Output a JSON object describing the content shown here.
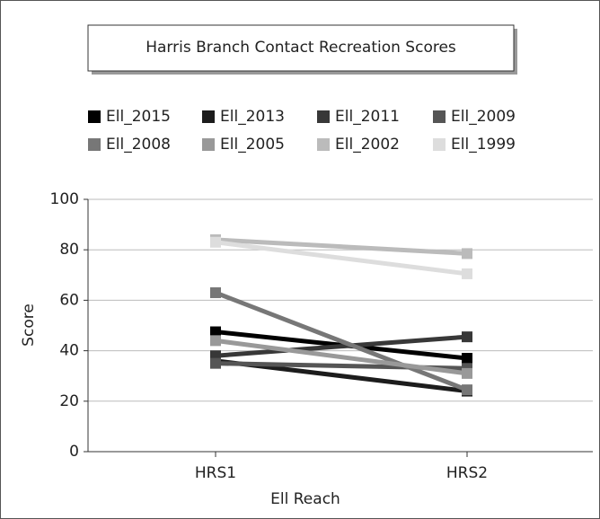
{
  "chart_data": {
    "type": "line",
    "title": "Harris Branch Contact Recreation Scores",
    "x_label": "Ell Reach",
    "y_label": "Score",
    "categories": [
      "HRS1",
      "HRS2"
    ],
    "series": [
      {
        "name": "Ell_2015",
        "color": "#000000",
        "values": [
          47.5,
          37
        ]
      },
      {
        "name": "Ell_2013",
        "color": "#1c1c1c",
        "values": [
          36,
          24
        ]
      },
      {
        "name": "Ell_2011",
        "color": "#383838",
        "values": [
          38,
          45.5
        ]
      },
      {
        "name": "Ell_2009",
        "color": "#555555",
        "values": [
          35,
          33
        ]
      },
      {
        "name": "Ell_2008",
        "color": "#777777",
        "values": [
          63,
          24.5
        ]
      },
      {
        "name": "Ell_2005",
        "color": "#999999",
        "values": [
          44,
          31
        ]
      },
      {
        "name": "Ell_2002",
        "color": "#bbbbbb",
        "values": [
          84,
          78.5
        ]
      },
      {
        "name": "Ell_1999",
        "color": "#dddddd",
        "values": [
          83,
          70.5
        ]
      }
    ],
    "ylim": [
      0,
      100
    ],
    "yticks": [
      0,
      20,
      40,
      60,
      80,
      100
    ],
    "grid": true
  }
}
